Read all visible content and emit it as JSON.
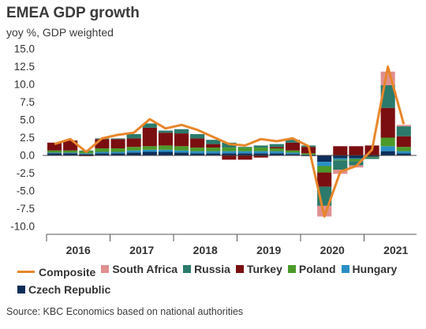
{
  "header": {
    "title": "EMEA GDP growth",
    "subtitle": "yoy %, GDP weighted"
  },
  "footer": {
    "source": "Source: KBC Economics based on national authorities"
  },
  "chart_data": {
    "type": "bar",
    "stacked": true,
    "title": "EMEA GDP growth",
    "ylabel": "yoy %, GDP weighted",
    "ylim": [
      -10,
      15
    ],
    "yticks": [
      "15.0",
      "12.5",
      "10.0",
      "7.5",
      "5.0",
      "2.5",
      "0.0",
      "-2.5",
      "-5.0",
      "-7.5",
      "-10.0"
    ],
    "years": [
      "2016",
      "2017",
      "2018",
      "2019",
      "2020",
      "2021"
    ],
    "categories": [
      "2016Q1",
      "2016Q2",
      "2016Q3",
      "2016Q4",
      "2017Q1",
      "2017Q2",
      "2017Q3",
      "2017Q4",
      "2018Q1",
      "2018Q2",
      "2018Q3",
      "2018Q4",
      "2019Q1",
      "2019Q2",
      "2019Q3",
      "2019Q4",
      "2020Q1",
      "2020Q2",
      "2020Q3",
      "2020Q4",
      "2021Q1",
      "2021Q2",
      "2021Q3"
    ],
    "series": [
      {
        "name": "Czech Republic",
        "color": "#0d2d5a",
        "values": [
          0.3,
          0.3,
          0.2,
          0.3,
          0.3,
          0.4,
          0.5,
          0.5,
          0.4,
          0.3,
          0.3,
          0.3,
          0.3,
          0.3,
          0.3,
          0.2,
          -0.1,
          -0.9,
          -0.4,
          -0.4,
          -0.2,
          0.6,
          0.3
        ]
      },
      {
        "name": "Hungary",
        "color": "#2a8fc4",
        "values": [
          0.1,
          0.1,
          0.1,
          0.2,
          0.2,
          0.3,
          0.3,
          0.3,
          0.3,
          0.3,
          0.3,
          0.3,
          0.3,
          0.3,
          0.3,
          0.2,
          0.1,
          -0.6,
          -0.2,
          -0.1,
          0.0,
          0.7,
          0.3
        ]
      },
      {
        "name": "Poland",
        "color": "#4c9a2a",
        "values": [
          0.3,
          0.3,
          0.3,
          0.5,
          0.5,
          0.5,
          0.5,
          0.6,
          0.6,
          0.5,
          0.5,
          0.5,
          0.5,
          0.5,
          0.4,
          0.3,
          0.2,
          -0.9,
          -0.1,
          -0.3,
          -0.1,
          1.2,
          0.6
        ]
      },
      {
        "name": "Turkey",
        "color": "#7b0e10",
        "values": [
          1.1,
          1.4,
          -0.1,
          1.3,
          1.3,
          1.2,
          2.6,
          1.8,
          1.8,
          1.3,
          0.5,
          -0.6,
          -0.6,
          -0.3,
          0.2,
          1.1,
          0.9,
          -2.0,
          1.3,
          1.3,
          1.4,
          4.2,
          1.5
        ]
      },
      {
        "name": "Russia",
        "color": "#2b7a6b",
        "values": [
          0.0,
          0.0,
          0.1,
          0.1,
          0.1,
          0.6,
          0.6,
          0.3,
          0.6,
          0.6,
          0.6,
          0.7,
          0.1,
          0.3,
          0.4,
          0.4,
          0.2,
          -2.7,
          -1.3,
          -0.6,
          -0.2,
          3.2,
          1.4
        ]
      },
      {
        "name": "South Africa",
        "color": "#e09090",
        "values": [
          0.0,
          0.0,
          0.0,
          0.0,
          0.0,
          0.0,
          0.0,
          0.0,
          0.0,
          0.0,
          0.0,
          0.0,
          0.0,
          0.0,
          0.0,
          0.0,
          0.0,
          -1.5,
          -0.6,
          -0.3,
          0.0,
          1.9,
          0.2
        ]
      },
      {
        "name": "Composite",
        "color": "#e8862a",
        "type": "line",
        "values": [
          1.6,
          2.3,
          0.5,
          2.4,
          2.9,
          3.2,
          5.1,
          3.8,
          4.3,
          3.6,
          2.6,
          1.6,
          1.4,
          2.3,
          2.0,
          2.4,
          1.3,
          -8.6,
          -2.3,
          -1.5,
          0.8,
          12.5,
          4.4
        ]
      }
    ]
  },
  "legend": {
    "items": [
      {
        "label": "Composite",
        "color": "#e8862a",
        "kind": "line"
      },
      {
        "label": "South Africa",
        "color": "#e09090",
        "kind": "box"
      },
      {
        "label": "Russia",
        "color": "#2b7a6b",
        "kind": "box"
      },
      {
        "label": "Turkey",
        "color": "#7b0e10",
        "kind": "box"
      },
      {
        "label": "Poland",
        "color": "#4c9a2a",
        "kind": "box"
      },
      {
        "label": "Hungary",
        "color": "#2a8fc4",
        "kind": "box"
      },
      {
        "label": "Czech Republic",
        "color": "#0d2d5a",
        "kind": "box"
      }
    ]
  }
}
